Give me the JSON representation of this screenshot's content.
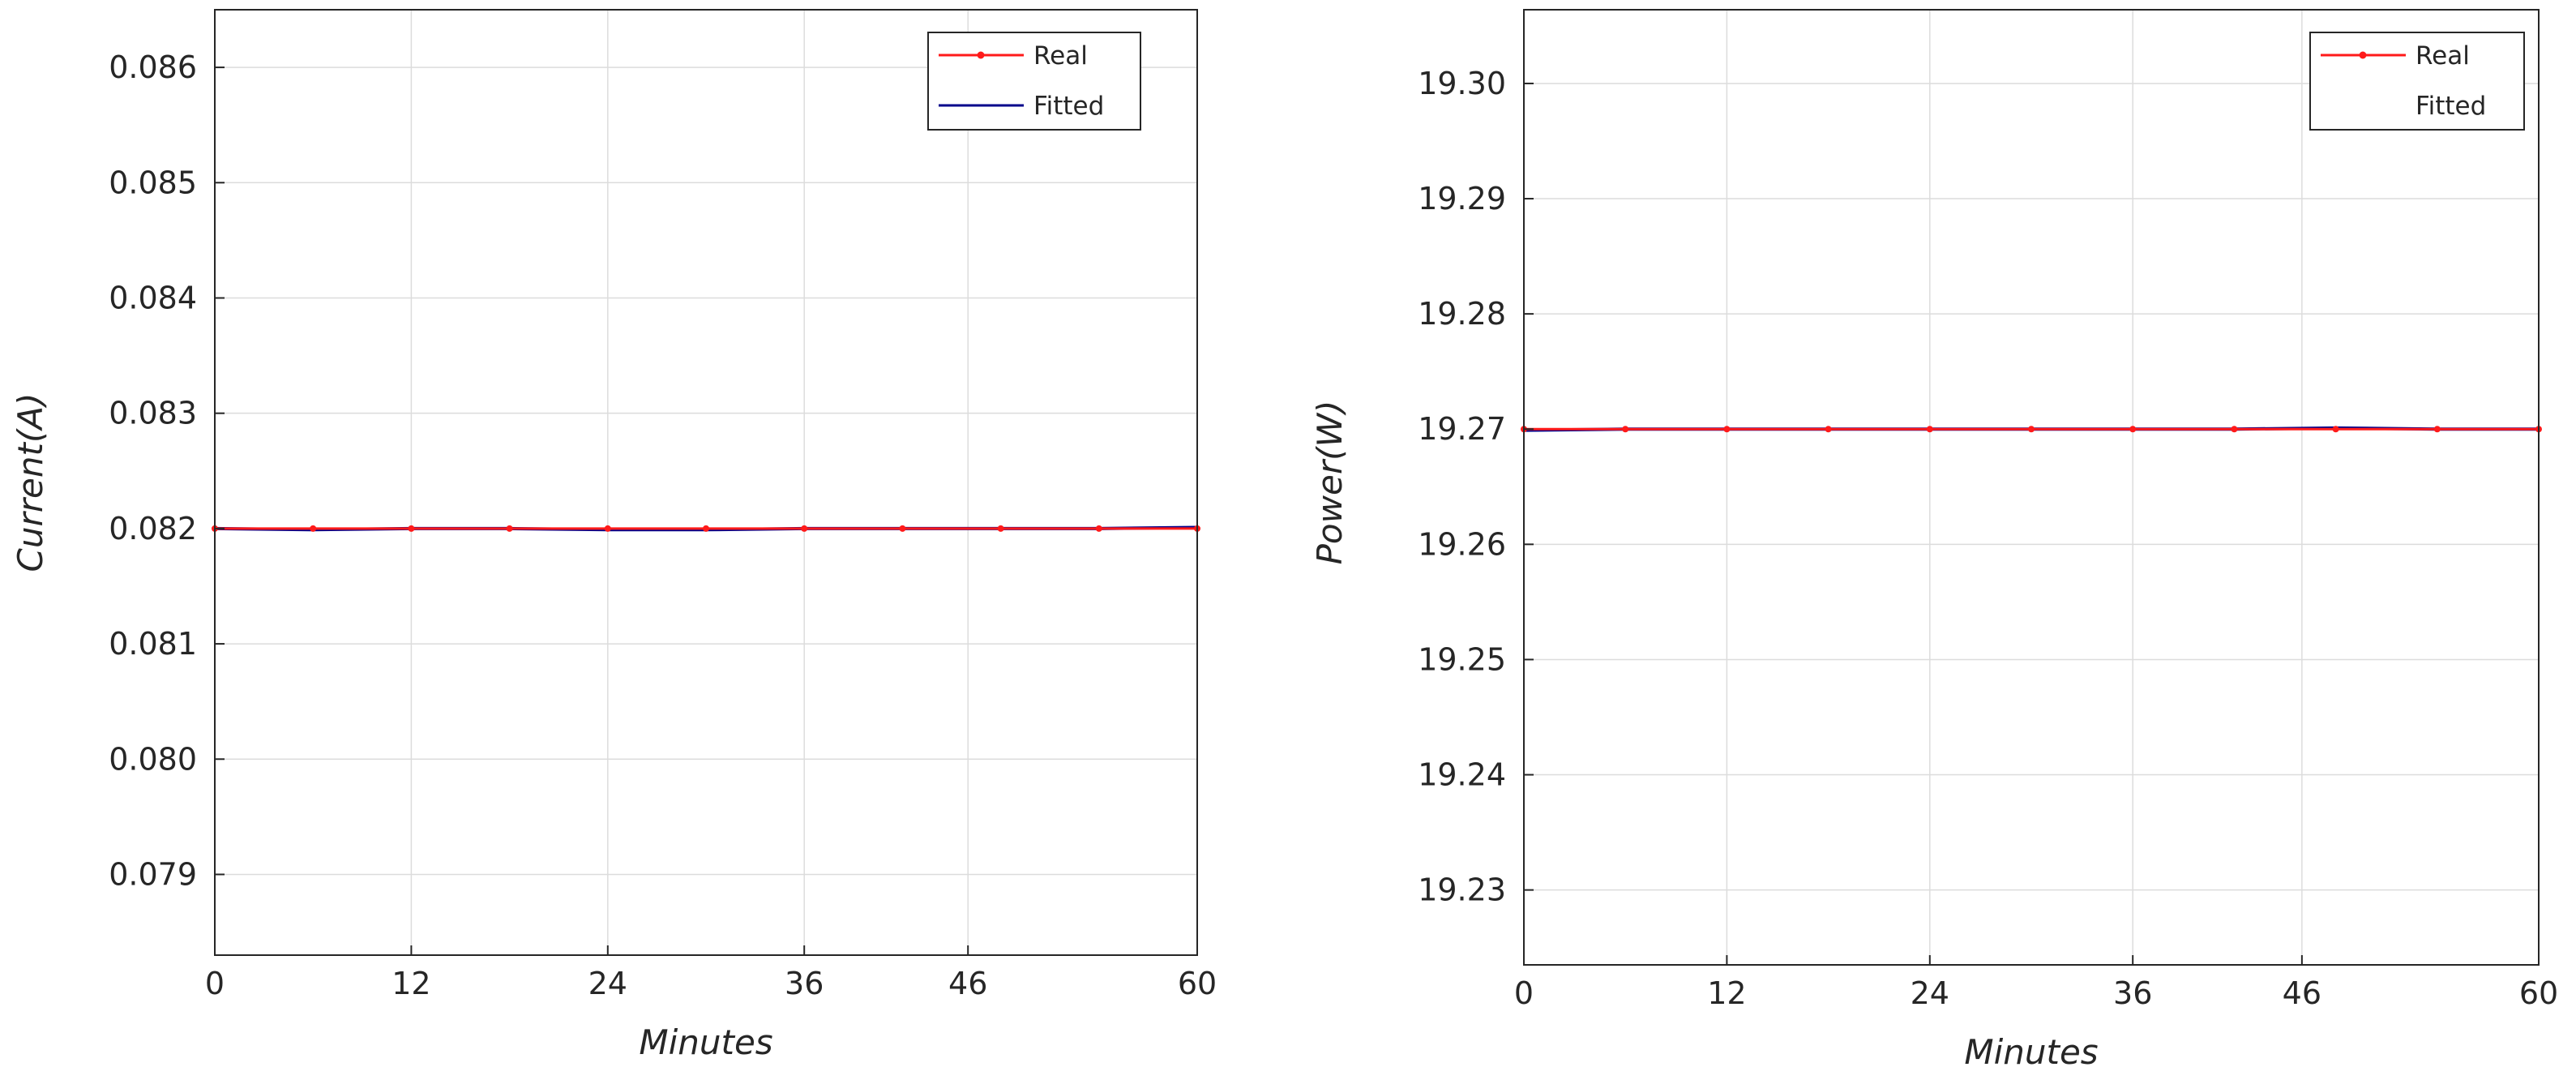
{
  "colors": {
    "real": "#ff1a1a",
    "fitted": "#00008b",
    "grid": "#dcdcdc",
    "axis": "#262626"
  },
  "chart_data": [
    {
      "type": "line",
      "title": "",
      "xlabel": "Minutes",
      "ylabel": "Current(A)",
      "xlim": [
        0,
        60
      ],
      "ylim": [
        0.0783,
        0.0865
      ],
      "xticks": [
        0,
        12,
        24,
        36,
        46,
        60
      ],
      "xtick_labels": [
        "0",
        "12",
        "24",
        "36",
        "46",
        "60"
      ],
      "yticks": [
        0.079,
        0.08,
        0.081,
        0.082,
        0.083,
        0.084,
        0.085,
        0.086
      ],
      "ytick_labels": [
        "0.079",
        "0.080",
        "0.081",
        "0.082",
        "0.083",
        "0.084",
        "0.085",
        "0.086"
      ],
      "grid": true,
      "legend": "top-right",
      "series": [
        {
          "name": "Real",
          "color": "#ff1a1a",
          "marker": "dot",
          "x": [
            0,
            6,
            12,
            18,
            24,
            30,
            36,
            42,
            48,
            54,
            60
          ],
          "y": [
            0.082,
            0.082,
            0.082,
            0.082,
            0.082,
            0.082,
            0.082,
            0.082,
            0.082,
            0.082,
            0.082
          ]
        },
        {
          "name": "Fitted",
          "color": "#00008b",
          "marker": "none",
          "x": [
            0,
            6,
            12,
            18,
            24,
            30,
            36,
            42,
            48,
            54,
            60
          ],
          "y": [
            0.082,
            0.08199,
            0.082,
            0.082,
            0.08199,
            0.08199,
            0.082,
            0.082,
            0.082,
            0.082,
            0.08201
          ]
        }
      ]
    },
    {
      "type": "line",
      "title": "",
      "xlabel": "Minutes",
      "ylabel": "Power(W)",
      "xlim": [
        0,
        60
      ],
      "ylim": [
        19.2235,
        19.3064
      ],
      "xticks": [
        0,
        12,
        24,
        36,
        46,
        60
      ],
      "xtick_labels": [
        "0",
        "12",
        "24",
        "36",
        "46",
        "60"
      ],
      "yticks": [
        19.23,
        19.24,
        19.25,
        19.26,
        19.27,
        19.28,
        19.29,
        19.3
      ],
      "ytick_labels": [
        "19.23",
        "19.24",
        "19.25",
        "19.26",
        "19.27",
        "19.28",
        "19.29",
        "19.30"
      ],
      "grid": true,
      "legend": "top-right",
      "series": [
        {
          "name": "Real",
          "color": "#ff1a1a",
          "marker": "dot",
          "x": [
            0,
            6,
            12,
            18,
            24,
            30,
            36,
            42,
            48,
            54,
            60
          ],
          "y": [
            19.27,
            19.27,
            19.27,
            19.27,
            19.27,
            19.27,
            19.27,
            19.27,
            19.27,
            19.27,
            19.27
          ]
        },
        {
          "name": "Fitted",
          "color": "#00008b",
          "marker": "none",
          "x": [
            0,
            6,
            12,
            18,
            24,
            30,
            36,
            42,
            48,
            54,
            60
          ],
          "y": [
            19.2699,
            19.27,
            19.27,
            19.27,
            19.27,
            19.27,
            19.27,
            19.27,
            19.2701,
            19.27,
            19.27
          ]
        }
      ]
    }
  ]
}
